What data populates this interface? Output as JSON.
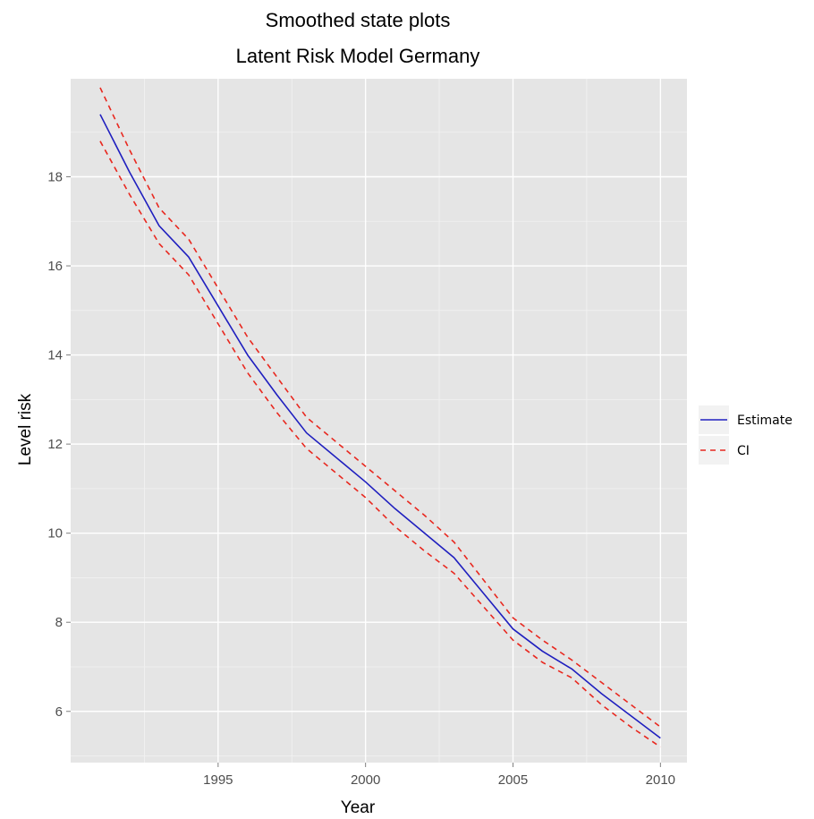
{
  "chart_data": {
    "type": "line",
    "title": "Smoothed state plots",
    "subtitle": "Latent Risk Model Germany",
    "xlabel": "Year",
    "ylabel": "Level risk",
    "xlim": [
      1990,
      2010.9
    ],
    "ylim": [
      4.85,
      20.2
    ],
    "x_ticks": [
      1995,
      2000,
      2005,
      2010
    ],
    "y_ticks": [
      6,
      8,
      10,
      12,
      14,
      16,
      18
    ],
    "grid": true,
    "legend_position": "right",
    "x": [
      1991,
      1992,
      1993,
      1994,
      1995,
      1996,
      1997,
      1998,
      1999,
      2000,
      2001,
      2002,
      2003,
      2004,
      2005,
      2006,
      2007,
      2008,
      2009,
      2010
    ],
    "series": [
      {
        "name": "Estimate",
        "style": "solid",
        "color": "#1f1fbf",
        "values": [
          19.4,
          18.1,
          16.9,
          16.2,
          15.1,
          14.0,
          13.1,
          12.25,
          11.7,
          11.15,
          10.55,
          10.0,
          9.45,
          8.65,
          7.85,
          7.35,
          6.95,
          6.4,
          5.9,
          5.4
        ]
      },
      {
        "name": "CI",
        "style": "dashed",
        "color": "#e8281f",
        "values": [
          20.0,
          18.6,
          17.3,
          16.6,
          15.5,
          14.4,
          13.5,
          12.6,
          12.05,
          11.5,
          10.95,
          10.4,
          9.8,
          8.95,
          8.1,
          7.6,
          7.15,
          6.65,
          6.15,
          5.65
        ]
      },
      {
        "name": "CI",
        "style": "dashed",
        "color": "#e8281f",
        "values": [
          18.8,
          17.6,
          16.5,
          15.8,
          14.7,
          13.6,
          12.7,
          11.9,
          11.35,
          10.8,
          10.15,
          9.6,
          9.1,
          8.35,
          7.6,
          7.1,
          6.75,
          6.15,
          5.65,
          5.2
        ]
      }
    ],
    "legend": [
      {
        "label": "Estimate",
        "style": "solid",
        "color": "#1f1fbf"
      },
      {
        "label": "CI",
        "style": "dashed",
        "color": "#e8281f"
      }
    ],
    "colors": {
      "panel_background": "#e5e5e5",
      "grid_major": "#ffffff",
      "grid_minor": "#f2f2f2"
    }
  }
}
